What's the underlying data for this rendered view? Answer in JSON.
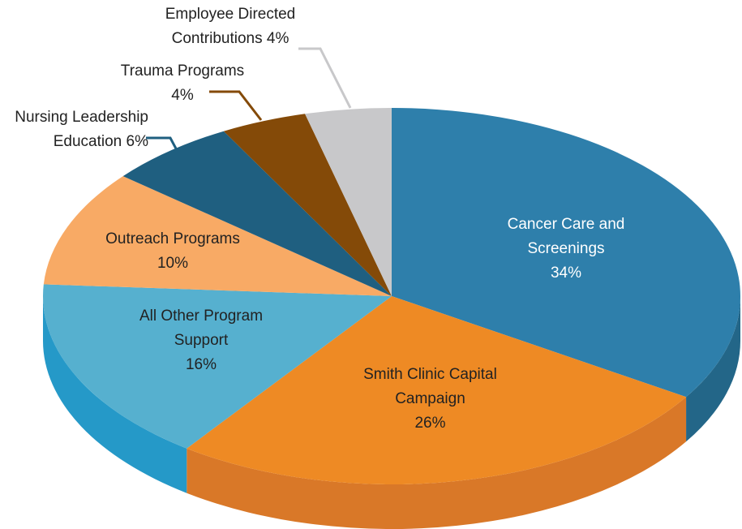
{
  "chart_data": {
    "type": "pie3d",
    "categories": [
      "Cancer Care and Screenings",
      "Smith Clinic Capital Campaign",
      "All Other Program Support",
      "Outreach Programs",
      "Nursing Leadership Education",
      "Trauma Programs",
      "Employee Directed Contributions"
    ],
    "values": [
      34,
      26,
      16,
      10,
      6,
      4,
      4
    ],
    "value_labels": [
      "34%",
      "26%",
      "16%",
      "10%",
      "6%",
      "4%",
      "4%"
    ],
    "colors": [
      "#2e7fab",
      "#ee8a24",
      "#56b0cf",
      "#f8aa65",
      "#1f5f80",
      "#844a08",
      "#c8c8ca"
    ],
    "side_colors": [
      "#236688",
      "#d97828",
      "#2599c8",
      "#e09050",
      "#174a64",
      "#5e3506",
      "#a0a0a2"
    ]
  }
}
